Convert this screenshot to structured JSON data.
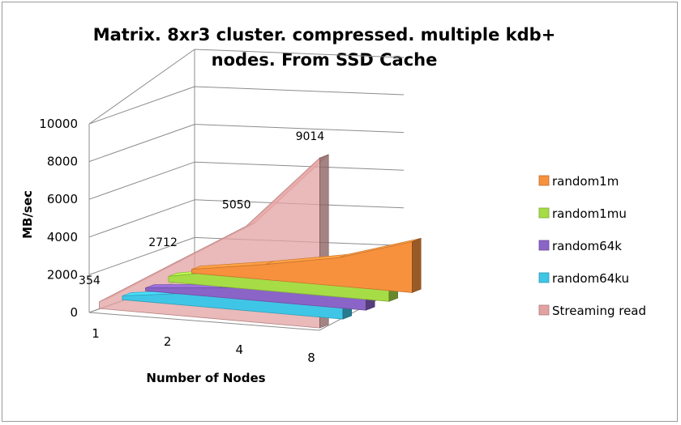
{
  "chart_data": {
    "type": "area",
    "title_line1": "Matrix. 8xr3 cluster. compressed. multiple kdb+",
    "title_line2": "nodes. From SSD Cache",
    "xlabel": "Number of Nodes",
    "ylabel": "MB/sec",
    "categories": [
      "1",
      "2",
      "4",
      "8"
    ],
    "ylim": [
      0,
      10000
    ],
    "yticks": [
      "0",
      "2000",
      "4000",
      "6000",
      "8000",
      "10000"
    ],
    "grid": true,
    "legend_position": "right",
    "series": [
      {
        "name": "random1m",
        "color": "#f7913d",
        "values": [
          200,
          800,
          1500,
          2700
        ]
      },
      {
        "name": "random1mu",
        "color": "#a6dd46",
        "values": [
          300,
          1000,
          1700,
          2800
        ]
      },
      {
        "name": "random64k",
        "color": "#8b64c8",
        "values": [
          150,
          500,
          900,
          1700
        ]
      },
      {
        "name": "random64ku",
        "color": "#3fc6e6",
        "values": [
          200,
          700,
          1200,
          2100
        ]
      },
      {
        "name": "Streaming read",
        "color": "#e3a2a2",
        "values": [
          354,
          2712,
          5050,
          9014
        ],
        "data_labels": [
          "354",
          "2712",
          "5050",
          "9014"
        ]
      }
    ]
  }
}
